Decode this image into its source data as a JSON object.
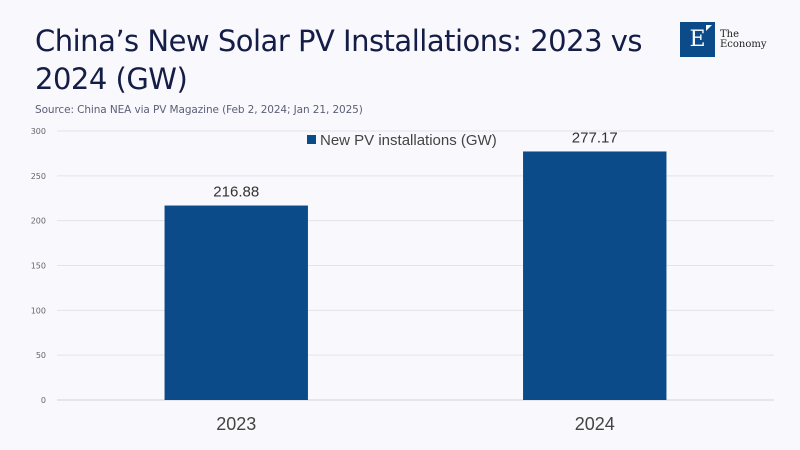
{
  "header": {
    "title": "China’s New Solar PV Installations: 2023 vs 2024 (GW)",
    "source": "Source: China NEA via PV Magazine (Feb 2, 2024; Jan 21, 2025)"
  },
  "logo": {
    "letter": "E",
    "line1": "The",
    "line2": "Economy",
    "color": "#0c4b8a"
  },
  "chart_data": {
    "type": "bar",
    "title": "China’s New Solar PV Installations: 2023 vs 2024 (GW)",
    "xlabel": "",
    "ylabel": "",
    "categories": [
      "2023",
      "2024"
    ],
    "series": [
      {
        "name": "New PV installations (GW)",
        "values": [
          216.88,
          277.17
        ],
        "color": "#0c4b8a"
      }
    ],
    "data_labels": [
      "216.88",
      "277.17"
    ],
    "ylim": [
      0,
      300
    ],
    "yticks": [
      0,
      50,
      100,
      150,
      200,
      250,
      300
    ],
    "grid": true,
    "legend": "top-center"
  }
}
